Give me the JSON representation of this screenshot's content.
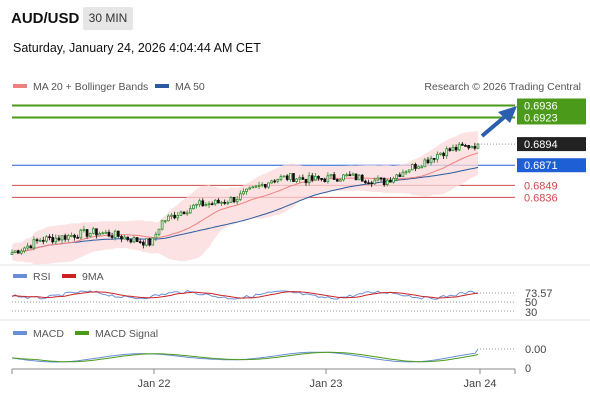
{
  "header": {
    "symbol": "AUD/USD",
    "timeframe": "30 MIN",
    "datetime": "Saturday, January 24, 2026 4:04:44 AM CET"
  },
  "chart_data": [
    {
      "type": "candlestick",
      "title": "AUD/USD 30 MIN",
      "legend_placement": "top-left",
      "credit": "Research © 2026 Trading Central",
      "legend": [
        {
          "name": "MA 20 + Bollinger Bands",
          "color": "#f08080"
        },
        {
          "name": "MA 50",
          "color": "#2c5aa0"
        }
      ],
      "price_range": [
        0.677,
        0.6942
      ],
      "x_ticks": [
        "Jan 22",
        "Jan 23",
        "Jan 24"
      ],
      "price_path": [
        [
          0.0,
          0.6776
        ],
        [
          0.03,
          0.6782
        ],
        [
          0.06,
          0.679
        ],
        [
          0.1,
          0.6792
        ],
        [
          0.14,
          0.6796
        ],
        [
          0.18,
          0.6798
        ],
        [
          0.22,
          0.6795
        ],
        [
          0.26,
          0.679
        ],
        [
          0.3,
          0.6786
        ],
        [
          0.32,
          0.6809
        ],
        [
          0.36,
          0.682
        ],
        [
          0.4,
          0.6828
        ],
        [
          0.44,
          0.683
        ],
        [
          0.48,
          0.6835
        ],
        [
          0.52,
          0.6845
        ],
        [
          0.56,
          0.6856
        ],
        [
          0.6,
          0.6858
        ],
        [
          0.64,
          0.6855
        ],
        [
          0.68,
          0.6857
        ],
        [
          0.72,
          0.6859
        ],
        [
          0.76,
          0.6856
        ],
        [
          0.8,
          0.6853
        ],
        [
          0.84,
          0.6865
        ],
        [
          0.88,
          0.6874
        ],
        [
          0.92,
          0.6885
        ],
        [
          0.96,
          0.689
        ],
        [
          1.0,
          0.6894
        ]
      ],
      "levels": [
        {
          "value": 0.6936,
          "label": "0.6936",
          "color": "#4c9a1a",
          "line": true
        },
        {
          "value": 0.6923,
          "label": "0.6923",
          "color": "#4c9a1a",
          "line": true
        },
        {
          "value": 0.6894,
          "label": "0.6894",
          "color": "#222222",
          "line": false
        },
        {
          "value": 0.6871,
          "label": "0.6871",
          "color": "#1f5fd6",
          "line": true
        },
        {
          "value": 0.6849,
          "label": "0.6849",
          "color": "#d04a4a",
          "line": true
        },
        {
          "value": 0.6836,
          "label": "0.6836",
          "color": "#d04a4a",
          "line": true
        }
      ]
    },
    {
      "type": "line",
      "title": "RSI",
      "legend": [
        {
          "name": "RSI",
          "color": "#6a8fd8"
        },
        {
          "name": "9MA",
          "color": "#cc2222"
        }
      ],
      "last_value": "73.57",
      "levels": [
        "50",
        "30"
      ]
    },
    {
      "type": "line",
      "title": "MACD",
      "legend": [
        {
          "name": "MACD",
          "color": "#6a8fd8"
        },
        {
          "name": "MACD Signal",
          "color": "#4c9a1a"
        }
      ],
      "last_value": "0.00",
      "zero_label": "0"
    }
  ]
}
